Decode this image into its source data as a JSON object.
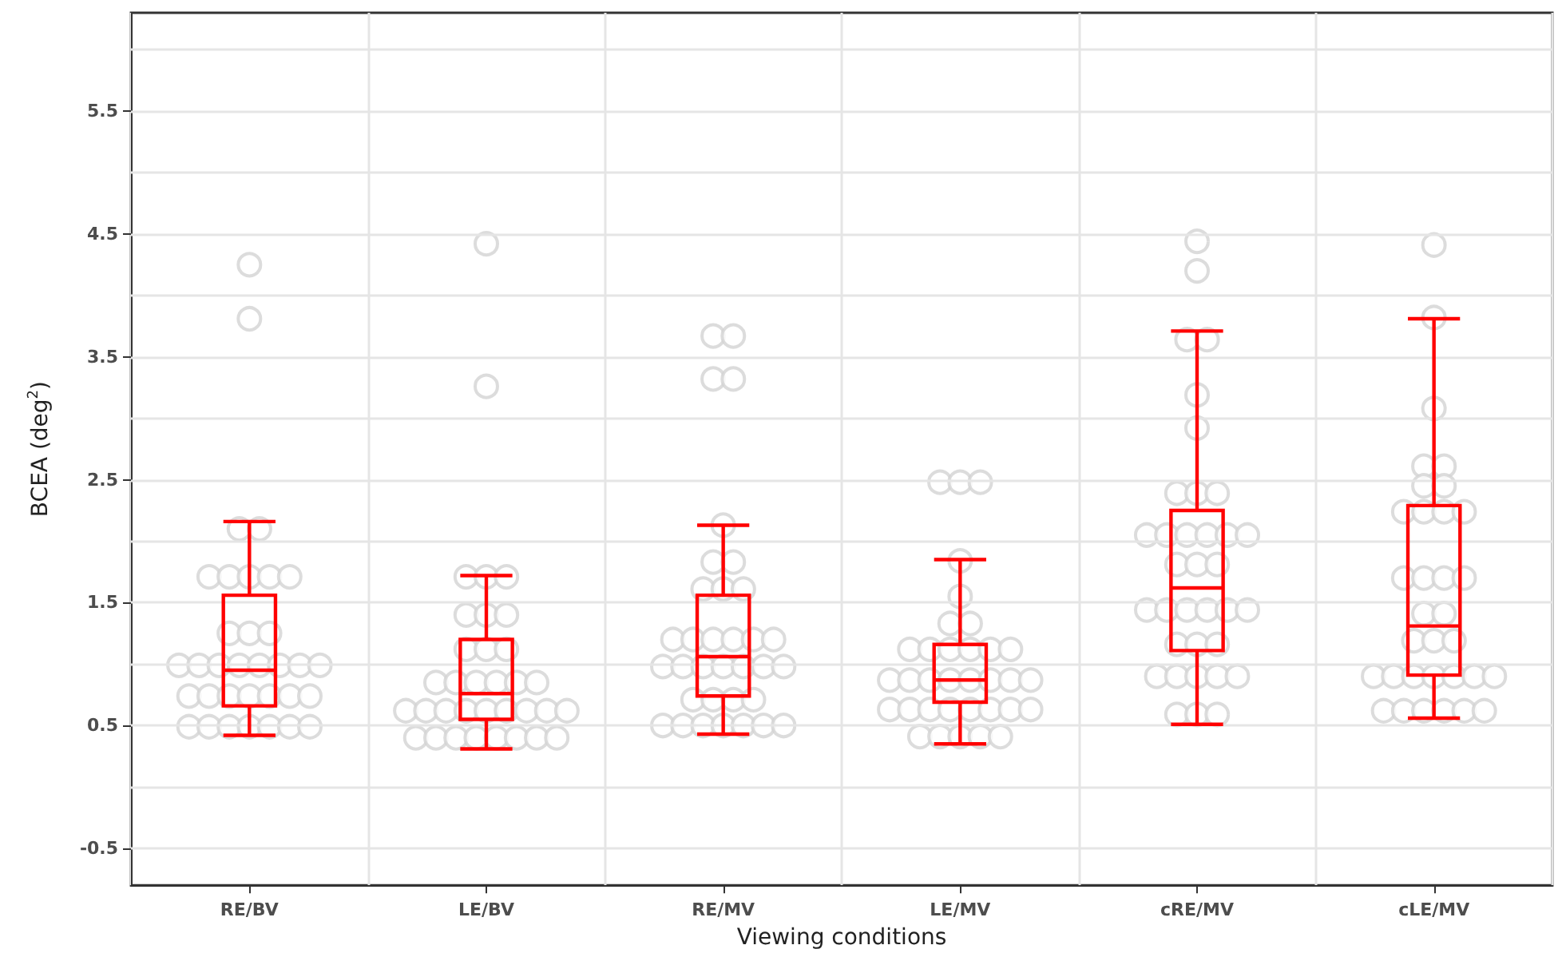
{
  "chart_data": {
    "type": "box",
    "xlabel": "Viewing conditions",
    "ylabel": "BCEA (deg$^{2}$)",
    "categories": [
      "RE/BV",
      "LE/BV",
      "RE/MV",
      "LE/MV",
      "cRE/MV",
      "cLE/MV"
    ],
    "ylim": [
      -0.8,
      6.3
    ],
    "yticks": [
      -0.5,
      {
        "value": 0,
        "label": null
      },
      0.5,
      {
        "value": 1,
        "label": null
      },
      1.5,
      {
        "value": 2,
        "label": null
      },
      2.5,
      {
        "value": 3,
        "label": null
      },
      3.5,
      {
        "value": 4,
        "label": null
      },
      4.5,
      {
        "value": 5,
        "label": null
      },
      5.5,
      {
        "value": 6,
        "label": null
      }
    ],
    "grid": true,
    "series": [
      {
        "type": "box",
        "color": "#ff0000",
        "boxes": [
          {
            "low": 0.42,
            "q1": 0.66,
            "median": 0.95,
            "q3": 1.56,
            "high": 2.16
          },
          {
            "low": 0.31,
            "q1": 0.55,
            "median": 0.76,
            "q3": 1.2,
            "high": 1.72
          },
          {
            "low": 0.43,
            "q1": 0.74,
            "median": 1.06,
            "q3": 1.56,
            "high": 2.13
          },
          {
            "low": 0.35,
            "q1": 0.69,
            "median": 0.87,
            "q3": 1.16,
            "high": 1.85
          },
          {
            "low": 0.51,
            "q1": 1.11,
            "median": 1.62,
            "q3": 2.25,
            "high": 3.71
          },
          {
            "low": 0.56,
            "q1": 0.91,
            "median": 1.31,
            "q3": 2.29,
            "high": 3.81
          }
        ]
      },
      {
        "type": "scatter",
        "color": "#d3d3d3",
        "marker": "circle",
        "x": [
          "RE/BV",
          "RE/BV",
          "RE/BV",
          "RE/BV",
          "RE/BV",
          "RE/BV",
          "RE/BV",
          "RE/BV",
          "RE/BV",
          "RE/BV",
          "RE/BV",
          "RE/BV",
          "RE/BV",
          "RE/BV",
          "RE/BV",
          "RE/BV",
          "RE/BV",
          "RE/BV",
          "RE/BV",
          "RE/BV",
          "RE/BV",
          "RE/BV",
          "RE/BV",
          "RE/BV",
          "RE/BV",
          "RE/BV",
          "RE/BV",
          "RE/BV",
          "RE/BV",
          "RE/BV",
          "RE/BV",
          "RE/BV",
          "RE/BV",
          "RE/BV",
          "LE/BV",
          "LE/BV",
          "LE/BV",
          "LE/BV",
          "LE/BV",
          "LE/BV",
          "LE/BV",
          "LE/BV",
          "LE/BV",
          "LE/BV",
          "LE/BV",
          "LE/BV",
          "LE/BV",
          "LE/BV",
          "LE/BV",
          "LE/BV",
          "LE/BV",
          "LE/BV",
          "LE/BV",
          "LE/BV",
          "LE/BV",
          "LE/BV",
          "LE/BV",
          "LE/BV",
          "LE/BV",
          "LE/BV",
          "LE/BV",
          "LE/BV",
          "LE/BV",
          "LE/BV",
          "LE/BV",
          "LE/BV",
          "LE/BV",
          "LE/BV",
          "RE/MV",
          "RE/MV",
          "RE/MV",
          "RE/MV",
          "RE/MV",
          "RE/MV",
          "RE/MV",
          "RE/MV",
          "RE/MV",
          "RE/MV",
          "RE/MV",
          "RE/MV",
          "RE/MV",
          "RE/MV",
          "RE/MV",
          "RE/MV",
          "RE/MV",
          "RE/MV",
          "RE/MV",
          "RE/MV",
          "RE/MV",
          "RE/MV",
          "RE/MV",
          "RE/MV",
          "RE/MV",
          "RE/MV",
          "RE/MV",
          "RE/MV",
          "RE/MV",
          "RE/MV",
          "RE/MV",
          "RE/MV",
          "RE/MV",
          "RE/MV",
          "LE/MV",
          "LE/MV",
          "LE/MV",
          "LE/MV",
          "LE/MV",
          "LE/MV",
          "LE/MV",
          "LE/MV",
          "LE/MV",
          "LE/MV",
          "LE/MV",
          "LE/MV",
          "LE/MV",
          "LE/MV",
          "LE/MV",
          "LE/MV",
          "LE/MV",
          "LE/MV",
          "LE/MV",
          "LE/MV",
          "LE/MV",
          "LE/MV",
          "LE/MV",
          "LE/MV",
          "LE/MV",
          "LE/MV",
          "LE/MV",
          "LE/MV",
          "LE/MV",
          "LE/MV",
          "LE/MV",
          "LE/MV",
          "LE/MV",
          "LE/MV",
          "cRE/MV",
          "cRE/MV",
          "cRE/MV",
          "cRE/MV",
          "cRE/MV",
          "cRE/MV",
          "cRE/MV",
          "cRE/MV",
          "cRE/MV",
          "cRE/MV",
          "cRE/MV",
          "cRE/MV",
          "cRE/MV",
          "cRE/MV",
          "cRE/MV",
          "cRE/MV",
          "cRE/MV",
          "cRE/MV",
          "cRE/MV",
          "cRE/MV",
          "cRE/MV",
          "cRE/MV",
          "cRE/MV",
          "cRE/MV",
          "cRE/MV",
          "cRE/MV",
          "cRE/MV",
          "cRE/MV",
          "cRE/MV",
          "cRE/MV",
          "cRE/MV",
          "cRE/MV",
          "cRE/MV",
          "cRE/MV",
          "cRE/MV",
          "cLE/MV",
          "cLE/MV",
          "cLE/MV",
          "cLE/MV",
          "cLE/MV",
          "cLE/MV",
          "cLE/MV",
          "cLE/MV",
          "cLE/MV",
          "cLE/MV",
          "cLE/MV",
          "cLE/MV",
          "cLE/MV",
          "cLE/MV",
          "cLE/MV",
          "cLE/MV",
          "cLE/MV",
          "cLE/MV",
          "cLE/MV",
          "cLE/MV",
          "cLE/MV",
          "cLE/MV",
          "cLE/MV",
          "cLE/MV",
          "cLE/MV",
          "cLE/MV",
          "cLE/MV",
          "cLE/MV",
          "cLE/MV",
          "cLE/MV",
          "cLE/MV",
          "cLE/MV",
          "cLE/MV"
        ],
        "values": [
          4.25,
          3.81,
          2.1,
          2.1,
          1.71,
          1.71,
          1.71,
          1.71,
          1.71,
          1.25,
          1.25,
          1.25,
          0.99,
          0.99,
          0.99,
          0.99,
          0.99,
          0.99,
          0.99,
          0.99,
          0.74,
          0.74,
          0.74,
          0.74,
          0.74,
          0.74,
          0.74,
          0.49,
          0.49,
          0.49,
          0.49,
          0.49,
          0.49,
          0.49,
          4.42,
          3.26,
          1.71,
          1.71,
          1.71,
          1.4,
          1.4,
          1.4,
          1.12,
          1.12,
          1.12,
          0.85,
          0.85,
          0.85,
          0.85,
          0.85,
          0.85,
          0.62,
          0.62,
          0.62,
          0.62,
          0.62,
          0.62,
          0.62,
          0.62,
          0.62,
          0.4,
          0.4,
          0.4,
          0.4,
          0.4,
          0.4,
          0.4,
          0.4,
          3.67,
          3.67,
          3.32,
          3.32,
          2.13,
          1.83,
          1.83,
          1.61,
          1.61,
          1.61,
          1.2,
          1.2,
          1.2,
          1.2,
          1.2,
          1.2,
          0.98,
          0.98,
          0.98,
          0.98,
          0.98,
          0.98,
          0.98,
          0.71,
          0.71,
          0.71,
          0.71,
          0.5,
          0.5,
          0.5,
          0.5,
          0.5,
          0.5,
          0.5,
          2.48,
          2.48,
          2.48,
          1.84,
          1.55,
          1.33,
          1.33,
          1.12,
          1.12,
          1.12,
          1.12,
          1.12,
          1.12,
          0.87,
          0.87,
          0.87,
          0.87,
          0.87,
          0.87,
          0.87,
          0.87,
          0.63,
          0.63,
          0.63,
          0.63,
          0.63,
          0.63,
          0.63,
          0.63,
          0.41,
          0.41,
          0.41,
          0.41,
          0.41,
          4.44,
          4.2,
          3.64,
          3.64,
          3.19,
          2.92,
          2.39,
          2.39,
          2.39,
          2.05,
          2.05,
          2.05,
          2.05,
          2.05,
          2.05,
          1.81,
          1.81,
          1.81,
          1.44,
          1.44,
          1.44,
          1.44,
          1.44,
          1.44,
          1.16,
          1.16,
          1.16,
          0.9,
          0.9,
          0.9,
          0.9,
          0.9,
          0.59,
          0.59,
          0.59,
          4.41,
          3.82,
          3.08,
          2.61,
          2.61,
          2.45,
          2.45,
          2.24,
          2.24,
          2.24,
          2.24,
          1.7,
          1.7,
          1.7,
          1.7,
          1.41,
          1.41,
          1.19,
          1.19,
          1.19,
          0.9,
          0.9,
          0.9,
          0.9,
          0.9,
          0.9,
          0.9,
          0.62,
          0.62,
          0.62,
          0.62,
          0.62,
          0.62
        ]
      }
    ]
  }
}
